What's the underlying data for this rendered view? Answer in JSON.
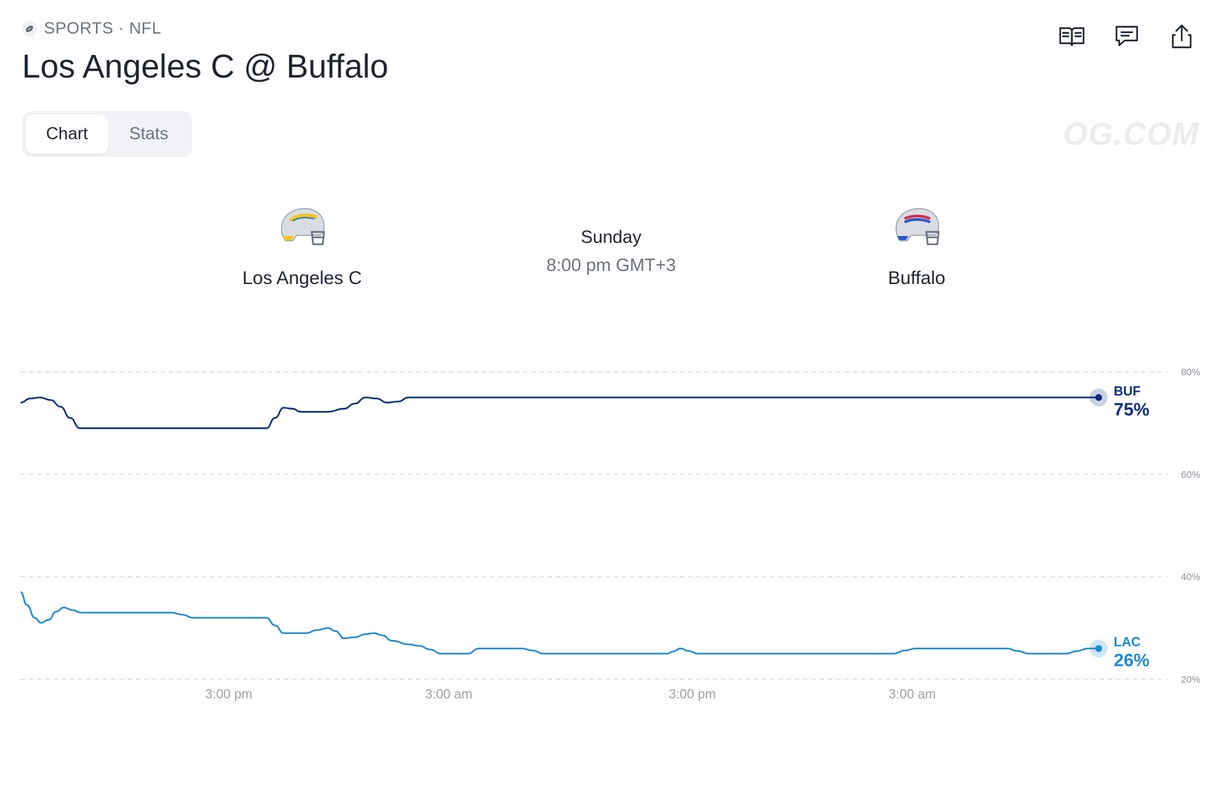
{
  "breadcrumb": {
    "category": "SPORTS · NFL",
    "icon": "football-icon"
  },
  "title": "Los Angeles C @ Buffalo",
  "actions": [
    {
      "name": "rules-button",
      "icon": "book-icon"
    },
    {
      "name": "comments-button",
      "icon": "chat-bubble-icon"
    },
    {
      "name": "share-button",
      "icon": "share-icon"
    }
  ],
  "tabs": [
    {
      "label": "Chart",
      "active": true
    },
    {
      "label": "Stats",
      "active": false
    }
  ],
  "brand": "OG.COM",
  "matchup": {
    "home": {
      "name": "Los Angeles C",
      "helmet": "chargers-helmet-icon"
    },
    "away": {
      "name": "Buffalo",
      "helmet": "bills-helmet-icon"
    },
    "day": "Sunday",
    "time": "8:00 pm GMT+3"
  },
  "colors": {
    "buf": "#0b2f7a",
    "lac": "#1f8ad1",
    "grid": "#d7dbe0"
  },
  "chart_data": {
    "type": "line",
    "y_ticks": [
      "80%",
      "60%",
      "40%",
      "20%"
    ],
    "y_tick_values": [
      80,
      60,
      40,
      20
    ],
    "ylim": [
      20,
      80
    ],
    "x_ticks": [
      {
        "label": "3:00 pm",
        "x": 0.174
      },
      {
        "label": "3:00 am",
        "x": 0.378
      },
      {
        "label": "3:00 pm",
        "x": 0.604
      },
      {
        "label": "3:00 am",
        "x": 0.808
      }
    ],
    "series": [
      {
        "name": "BUF",
        "current": "75%",
        "points": [
          [
            0,
            74
          ],
          [
            0.009,
            74.8
          ],
          [
            0.018,
            75
          ],
          [
            0.028,
            74.5
          ],
          [
            0.037,
            73.2
          ],
          [
            0.046,
            71
          ],
          [
            0.055,
            69
          ],
          [
            0.1,
            69
          ],
          [
            0.14,
            69
          ],
          [
            0.18,
            69
          ],
          [
            0.21,
            69
          ],
          [
            0.228,
            69
          ],
          [
            0.236,
            71
          ],
          [
            0.244,
            73
          ],
          [
            0.252,
            72.8
          ],
          [
            0.26,
            72.2
          ],
          [
            0.27,
            72.2
          ],
          [
            0.285,
            72.2
          ],
          [
            0.3,
            72.8
          ],
          [
            0.31,
            73.8
          ],
          [
            0.32,
            75
          ],
          [
            0.33,
            74.8
          ],
          [
            0.34,
            74
          ],
          [
            0.35,
            74.2
          ],
          [
            0.36,
            75
          ],
          [
            0.5,
            75
          ],
          [
            0.7,
            75
          ],
          [
            0.9,
            75
          ],
          [
            1.0,
            75
          ]
        ]
      },
      {
        "name": "LAC",
        "current": "26%",
        "points": [
          [
            0,
            37
          ],
          [
            0.006,
            34.5
          ],
          [
            0.013,
            32
          ],
          [
            0.019,
            31
          ],
          [
            0.026,
            31.6
          ],
          [
            0.033,
            33.2
          ],
          [
            0.04,
            34
          ],
          [
            0.048,
            33.5
          ],
          [
            0.056,
            33
          ],
          [
            0.1,
            33
          ],
          [
            0.13,
            33
          ],
          [
            0.14,
            33
          ],
          [
            0.15,
            32.6
          ],
          [
            0.16,
            32
          ],
          [
            0.22,
            32
          ],
          [
            0.228,
            32
          ],
          [
            0.236,
            30.5
          ],
          [
            0.244,
            29
          ],
          [
            0.255,
            29
          ],
          [
            0.265,
            29
          ],
          [
            0.275,
            29.6
          ],
          [
            0.285,
            30
          ],
          [
            0.292,
            29.4
          ],
          [
            0.3,
            28
          ],
          [
            0.31,
            28.2
          ],
          [
            0.32,
            28.8
          ],
          [
            0.328,
            29
          ],
          [
            0.335,
            28.6
          ],
          [
            0.345,
            27.5
          ],
          [
            0.36,
            26.8
          ],
          [
            0.37,
            26.5
          ],
          [
            0.38,
            25.8
          ],
          [
            0.39,
            25
          ],
          [
            0.405,
            25
          ],
          [
            0.415,
            25
          ],
          [
            0.425,
            26
          ],
          [
            0.44,
            26
          ],
          [
            0.465,
            26
          ],
          [
            0.475,
            25.6
          ],
          [
            0.485,
            25
          ],
          [
            0.5,
            25
          ],
          [
            0.6,
            25
          ],
          [
            0.605,
            25.4
          ],
          [
            0.612,
            26
          ],
          [
            0.62,
            25.5
          ],
          [
            0.628,
            25
          ],
          [
            0.7,
            25
          ],
          [
            0.8,
            25
          ],
          [
            0.81,
            25
          ],
          [
            0.82,
            25.6
          ],
          [
            0.83,
            26
          ],
          [
            0.9,
            26
          ],
          [
            0.915,
            26
          ],
          [
            0.925,
            25.5
          ],
          [
            0.935,
            25
          ],
          [
            0.97,
            25
          ],
          [
            0.98,
            25.5
          ],
          [
            0.99,
            26
          ],
          [
            1.0,
            26
          ]
        ]
      }
    ]
  }
}
